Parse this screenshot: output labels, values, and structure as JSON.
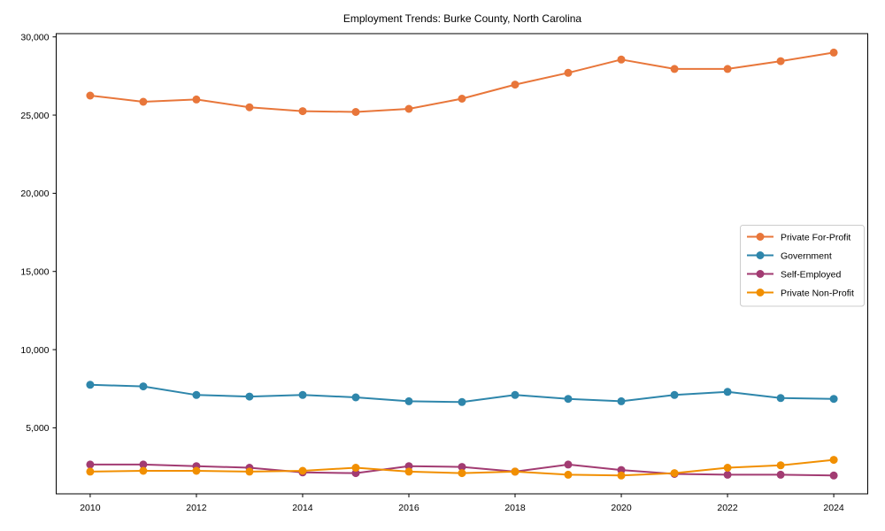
{
  "title": "Employment Trends: Burke County, North Carolina",
  "chart_data": {
    "type": "line",
    "title": "Employment Trends: Burke County, North Carolina",
    "xlabel": "",
    "ylabel": "",
    "x": [
      2010,
      2011,
      2012,
      2013,
      2014,
      2015,
      2016,
      2017,
      2018,
      2019,
      2020,
      2021,
      2022,
      2023,
      2024
    ],
    "series": [
      {
        "name": "Private For-Profit",
        "color": "#e8763a",
        "values": [
          26250,
          25850,
          26000,
          25500,
          25250,
          25200,
          25400,
          26050,
          26950,
          27700,
          28550,
          27950,
          27950,
          28450,
          29000
        ]
      },
      {
        "name": "Government",
        "color": "#2e86ab",
        "values": [
          7750,
          7650,
          7100,
          7000,
          7100,
          6950,
          6700,
          6650,
          7100,
          6850,
          6700,
          7100,
          7300,
          6900,
          6850
        ]
      },
      {
        "name": "Self-Employed",
        "color": "#a23b72",
        "values": [
          2650,
          2650,
          2550,
          2450,
          2150,
          2100,
          2550,
          2500,
          2200,
          2650,
          2300,
          2050,
          2000,
          2000,
          1950
        ]
      },
      {
        "name": "Private Non-Profit",
        "color": "#f18f01",
        "values": [
          2200,
          2250,
          2250,
          2200,
          2250,
          2450,
          2200,
          2100,
          2200,
          2000,
          1950,
          2100,
          2450,
          2600,
          2950
        ]
      }
    ],
    "xticks": [
      {
        "value": 2010,
        "label": "2010"
      },
      {
        "value": 2012,
        "label": "2012"
      },
      {
        "value": 2014,
        "label": "2014"
      },
      {
        "value": 2016,
        "label": "2016"
      },
      {
        "value": 2018,
        "label": "2018"
      },
      {
        "value": 2020,
        "label": "2020"
      },
      {
        "value": 2022,
        "label": "2022"
      },
      {
        "value": 2024,
        "label": "2024"
      }
    ],
    "yticks": [
      {
        "value": 5000,
        "label": "5,000"
      },
      {
        "value": 10000,
        "label": "10,000"
      },
      {
        "value": 15000,
        "label": "15,000"
      },
      {
        "value": 20000,
        "label": "20,000"
      },
      {
        "value": 25000,
        "label": "25,000"
      },
      {
        "value": 30000,
        "label": "30,000"
      }
    ],
    "xlim": [
      2009.36,
      2024.64
    ],
    "ylim": [
      778,
      30210
    ],
    "grid": false,
    "legend_position": "center right",
    "axis_color": "#000000"
  }
}
